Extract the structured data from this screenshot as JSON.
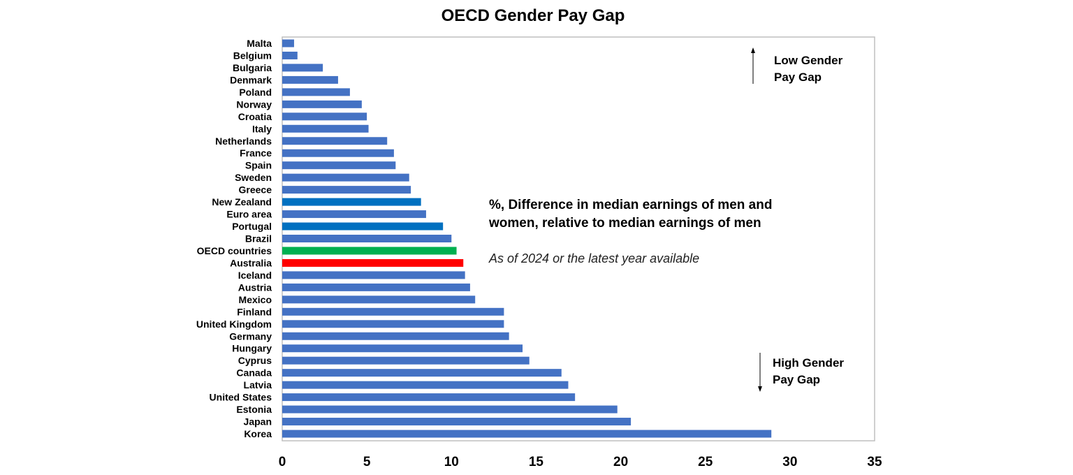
{
  "chart_data": {
    "type": "bar",
    "orientation": "horizontal",
    "title": "OECD Gender Pay Gap",
    "xlabel": "",
    "ylabel": "",
    "xlim": [
      0,
      35
    ],
    "xticks": [
      0,
      5,
      10,
      15,
      20,
      25,
      30,
      35
    ],
    "grid": false,
    "categories": [
      "Malta",
      "Belgium",
      "Bulgaria",
      "Denmark",
      "Poland",
      "Norway",
      "Croatia",
      "Italy",
      "Netherlands",
      "France",
      "Spain",
      "Sweden",
      "Greece",
      "New Zealand",
      "Euro area",
      "Portugal",
      "Brazil",
      "OECD countries",
      "Australia",
      "Iceland",
      "Austria",
      "Mexico",
      "Finland",
      "United Kingdom",
      "Germany",
      "Hungary",
      "Cyprus",
      "Canada",
      "Latvia",
      "United States",
      "Estonia",
      "Japan",
      "Korea"
    ],
    "values": [
      0.7,
      0.9,
      2.4,
      3.3,
      4.0,
      4.7,
      5.0,
      5.1,
      6.2,
      6.6,
      6.7,
      7.5,
      7.6,
      8.2,
      8.5,
      9.5,
      10.0,
      10.3,
      10.7,
      10.8,
      11.1,
      11.4,
      13.1,
      13.1,
      13.4,
      14.2,
      14.6,
      16.5,
      16.9,
      17.3,
      19.8,
      20.6,
      28.9
    ],
    "colors": {
      "default": "#4472C4",
      "New Zealand": "#0070C0",
      "Portugal": "#0070C0",
      "OECD countries": "#00B050",
      "Australia": "#FF0000"
    },
    "annotations": {
      "low_line1": "Low Gender",
      "low_line2": "Pay Gap",
      "high_line1": "High Gender",
      "high_line2": "Pay Gap",
      "desc_line1": "%, Difference in median earnings of men and",
      "desc_line2": "women, relative to median earnings of men",
      "as_of": "As of 2024 or the latest year available"
    }
  }
}
